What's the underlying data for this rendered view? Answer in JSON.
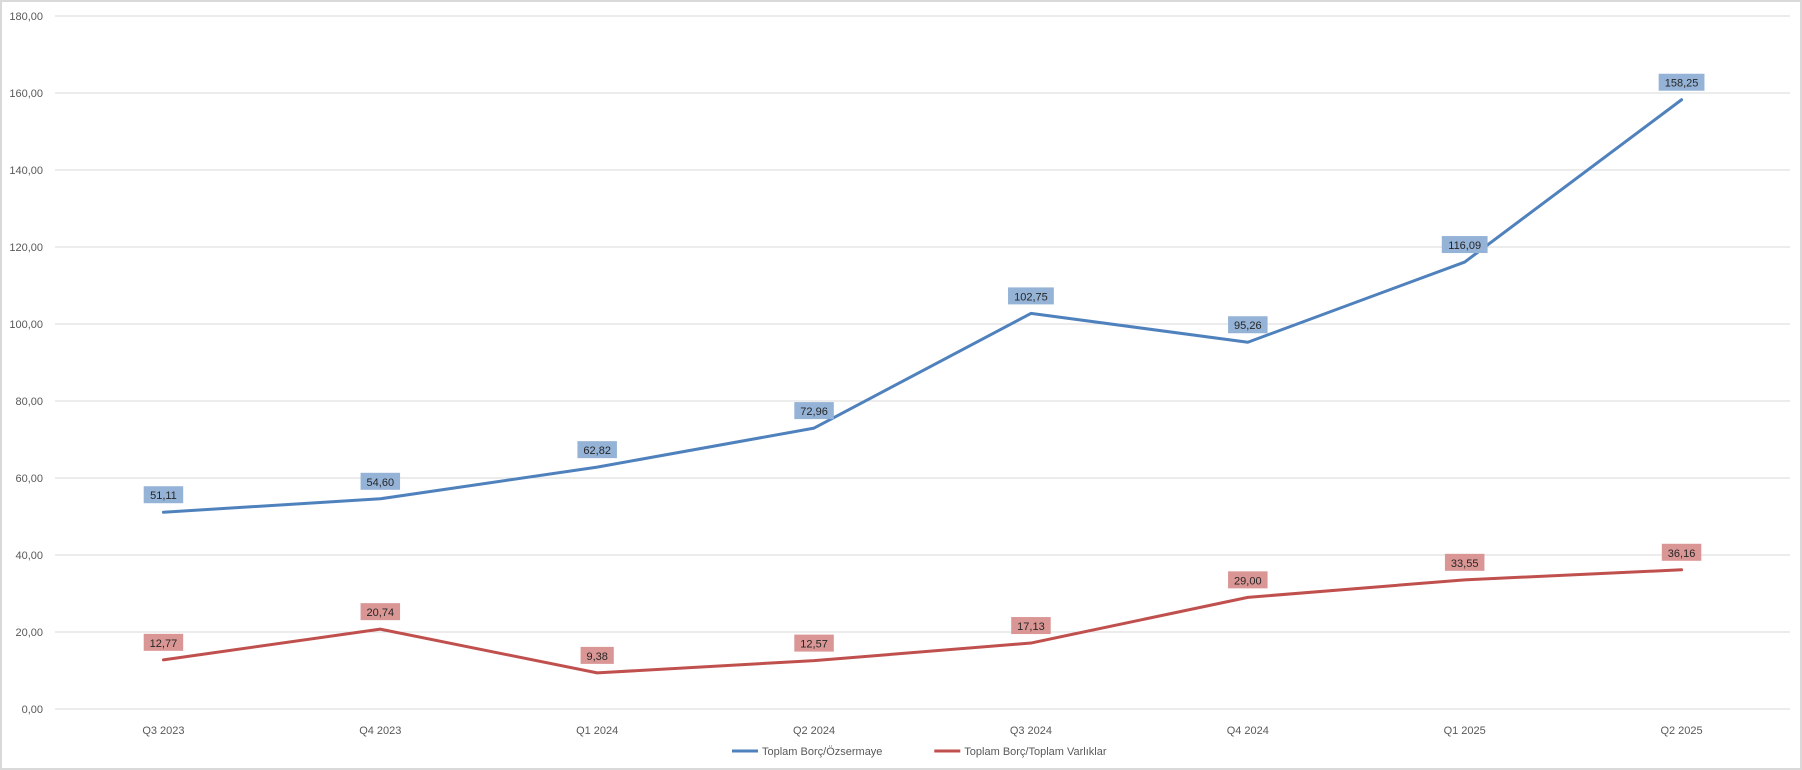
{
  "chart_data": {
    "type": "line",
    "title": "",
    "xlabel": "",
    "ylabel": "",
    "categories": [
      "Q3 2023",
      "Q4 2023",
      "Q1 2024",
      "Q2 2024",
      "Q3 2024",
      "Q4 2024",
      "Q1 2025",
      "Q2 2025"
    ],
    "ylim": [
      0,
      180
    ],
    "yticks": [
      "0,00",
      "20,00",
      "40,00",
      "60,00",
      "80,00",
      "100,00",
      "120,00",
      "140,00",
      "160,00",
      "180,00"
    ],
    "grid": true,
    "legend_position": "bottom",
    "series": [
      {
        "name": "Toplam Borç/Özsermaye",
        "color": "#4f81bd",
        "label_bg": "#95b3d7",
        "values": [
          51.11,
          54.6,
          62.82,
          72.96,
          102.75,
          95.26,
          116.09,
          158.25
        ],
        "labels": [
          "51,11",
          "54,60",
          "62,82",
          "72,96",
          "102,75",
          "95,26",
          "116,09",
          "158,25"
        ]
      },
      {
        "name": "Toplam Borç/Toplam Varlıklar",
        "color": "#c0504d",
        "label_bg": "#da9694",
        "values": [
          12.77,
          20.74,
          9.38,
          12.57,
          17.13,
          29.0,
          33.55,
          36.16
        ],
        "labels": [
          "12,77",
          "20,74",
          "9,38",
          "12,57",
          "17,13",
          "29,00",
          "33,55",
          "36,16"
        ]
      }
    ]
  }
}
